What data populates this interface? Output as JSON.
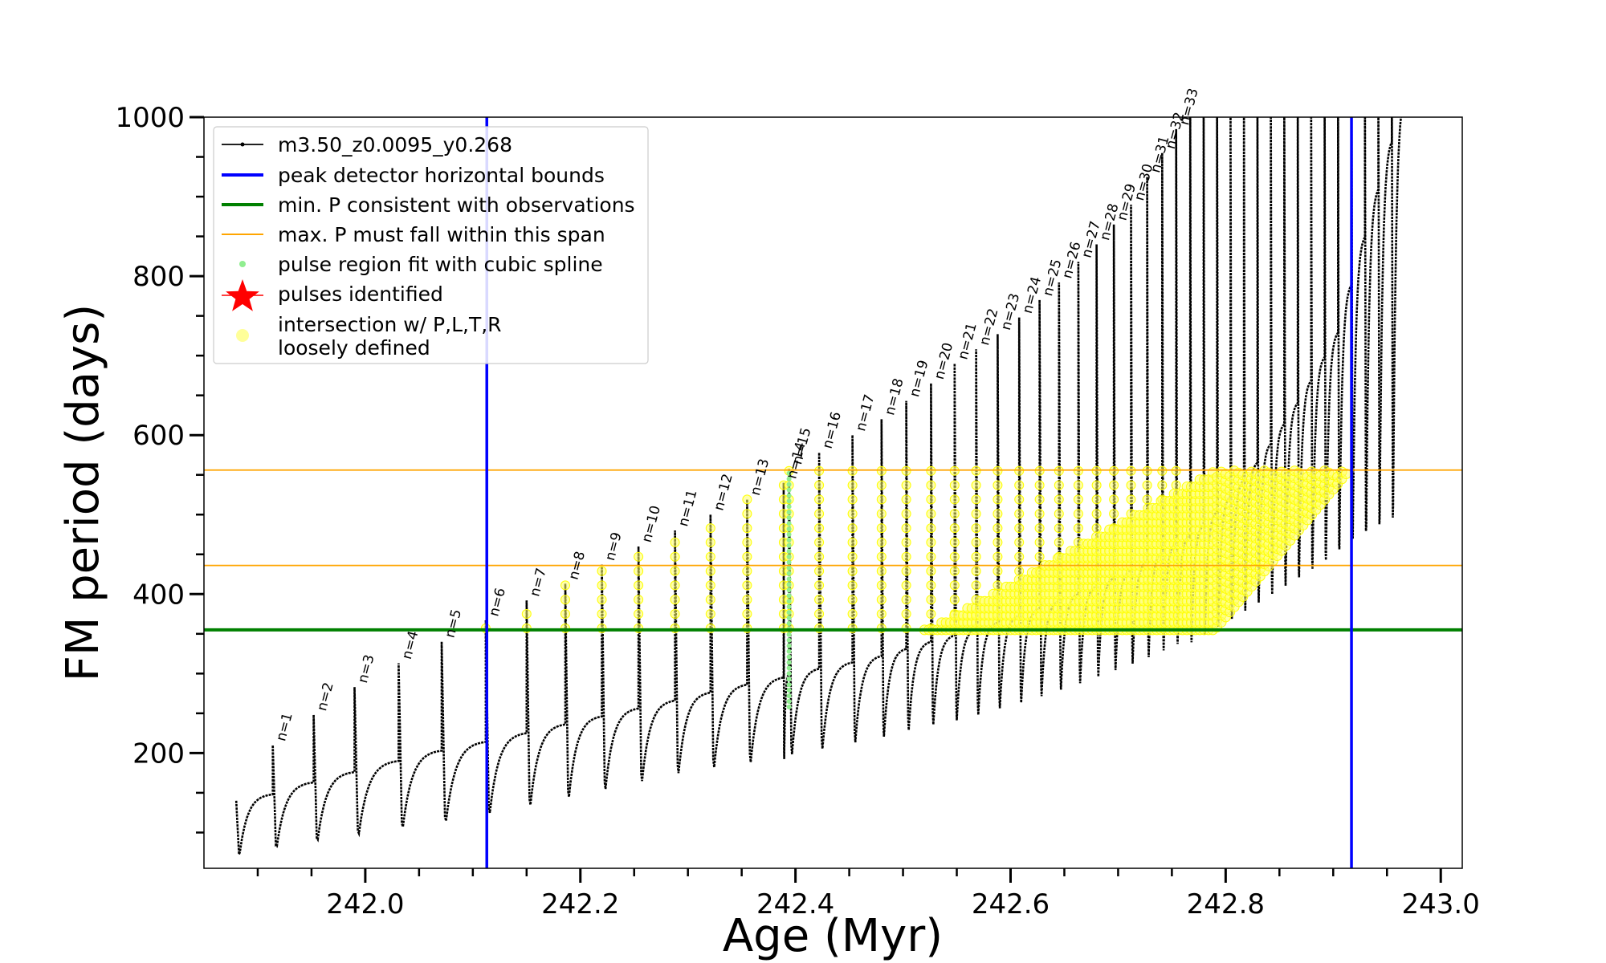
{
  "chart_data": {
    "type": "line",
    "xlabel": "Age (Myr)",
    "ylabel": "FM period (days)",
    "xlim": [
      241.85,
      243.02
    ],
    "ylim": [
      55,
      1000
    ],
    "xticks": [
      242.0,
      242.2,
      242.4,
      242.6,
      242.8,
      243.0
    ],
    "xtick_labels": [
      "242.0",
      "242.2",
      "242.4",
      "242.6",
      "242.8",
      "243.0"
    ],
    "yticks": [
      200,
      400,
      600,
      800,
      1000
    ],
    "ytick_labels": [
      "200",
      "400",
      "600",
      "800",
      "1000"
    ],
    "grid": false,
    "legend_position": "upper-left",
    "legend": [
      {
        "label": "m3.50_z0.0095_y0.268",
        "color": "#000000",
        "kind": "line-marker"
      },
      {
        "label": "peak detector horizontal bounds",
        "color": "#0000ff",
        "kind": "line"
      },
      {
        "label": "min. P consistent with observations",
        "color": "#008000",
        "kind": "line"
      },
      {
        "label": "max. P must fall within this span",
        "color": "#ffa500",
        "kind": "thin-line"
      },
      {
        "label": "pulse region fit with cubic spline",
        "color": "#90ee90",
        "kind": "dot"
      },
      {
        "label": "pulses identified",
        "color": "#ff0000",
        "kind": "star"
      },
      {
        "label": "intersection w/ P,L,T,R\nloosely defined",
        "color": "#ffff99",
        "kind": "circle"
      }
    ],
    "vertical_bounds": [
      242.113,
      242.917
    ],
    "min_period": 355,
    "max_period_span": [
      436,
      556
    ],
    "pulses": [
      {
        "label": "n=1",
        "age": 241.914,
        "peak": 210,
        "trough": 68,
        "pre": 148
      },
      {
        "label": "n=2",
        "age": 241.952,
        "peak": 248,
        "trough": 75,
        "pre": 163
      },
      {
        "label": "n=3",
        "age": 241.99,
        "peak": 283,
        "trough": 83,
        "pre": 176
      },
      {
        "label": "n=4",
        "age": 242.031,
        "peak": 313,
        "trough": 90,
        "pre": 190
      },
      {
        "label": "n=5",
        "age": 242.071,
        "peak": 340,
        "trough": 98,
        "pre": 203
      },
      {
        "label": "n=6",
        "age": 242.112,
        "peak": 367,
        "trough": 105,
        "pre": 214
      },
      {
        "label": "n=7",
        "age": 242.15,
        "peak": 392,
        "trough": 115,
        "pre": 225
      },
      {
        "label": "n=8",
        "age": 242.186,
        "peak": 413,
        "trough": 125,
        "pre": 236
      },
      {
        "label": "n=9",
        "age": 242.22,
        "peak": 437,
        "trough": 135,
        "pre": 246
      },
      {
        "label": "n=10",
        "age": 242.254,
        "peak": 460,
        "trough": 145,
        "pre": 256
      },
      {
        "label": "n=11",
        "age": 242.288,
        "peak": 480,
        "trough": 155,
        "pre": 266
      },
      {
        "label": "n=12",
        "age": 242.321,
        "peak": 500,
        "trough": 165,
        "pre": 276
      },
      {
        "label": "n=13",
        "age": 242.355,
        "peak": 519,
        "trough": 172,
        "pre": 286
      },
      {
        "label": "n=14",
        "age": 242.389,
        "peak": 540,
        "trough": 178,
        "pre": 295
      },
      {
        "label": "n=15",
        "age": 242.394,
        "peak": 558,
        "trough": 182,
        "pre": 300
      },
      {
        "label": "n=16",
        "age": 242.422,
        "peak": 578,
        "trough": 188,
        "pre": 306
      },
      {
        "label": "n=17",
        "age": 242.453,
        "peak": 600,
        "trough": 195,
        "pre": 314
      },
      {
        "label": "n=18",
        "age": 242.48,
        "peak": 620,
        "trough": 203,
        "pre": 322
      },
      {
        "label": "n=19",
        "age": 242.503,
        "peak": 643,
        "trough": 210,
        "pre": 331
      },
      {
        "label": "n=20",
        "age": 242.526,
        "peak": 665,
        "trough": 218,
        "pre": 340
      },
      {
        "label": "n=21",
        "age": 242.548,
        "peak": 690,
        "trough": 225,
        "pre": 348
      },
      {
        "label": "n=22",
        "age": 242.568,
        "peak": 708,
        "trough": 230,
        "pre": 356
      },
      {
        "label": "n=23",
        "age": 242.588,
        "peak": 727,
        "trough": 237,
        "pre": 364
      },
      {
        "label": "n=24",
        "age": 242.608,
        "peak": 748,
        "trough": 245,
        "pre": 373
      },
      {
        "label": "n=25",
        "age": 242.627,
        "peak": 770,
        "trough": 252,
        "pre": 382
      },
      {
        "label": "n=26",
        "age": 242.645,
        "peak": 792,
        "trough": 260,
        "pre": 391
      },
      {
        "label": "n=27",
        "age": 242.663,
        "peak": 818,
        "trough": 268,
        "pre": 400
      },
      {
        "label": "n=28",
        "age": 242.68,
        "peak": 840,
        "trough": 276,
        "pre": 410
      },
      {
        "label": "n=29",
        "age": 242.696,
        "peak": 865,
        "trough": 284,
        "pre": 420
      },
      {
        "label": "n=30",
        "age": 242.712,
        "peak": 890,
        "trough": 292,
        "pre": 430
      },
      {
        "label": "n=31",
        "age": 242.727,
        "peak": 925,
        "trough": 300,
        "pre": 441
      },
      {
        "label": "n=32",
        "age": 242.741,
        "peak": 955,
        "trough": 308,
        "pre": 452
      },
      {
        "label": "n=33",
        "age": 242.754,
        "peak": 985,
        "trough": 316,
        "pre": 464
      }
    ]
  }
}
